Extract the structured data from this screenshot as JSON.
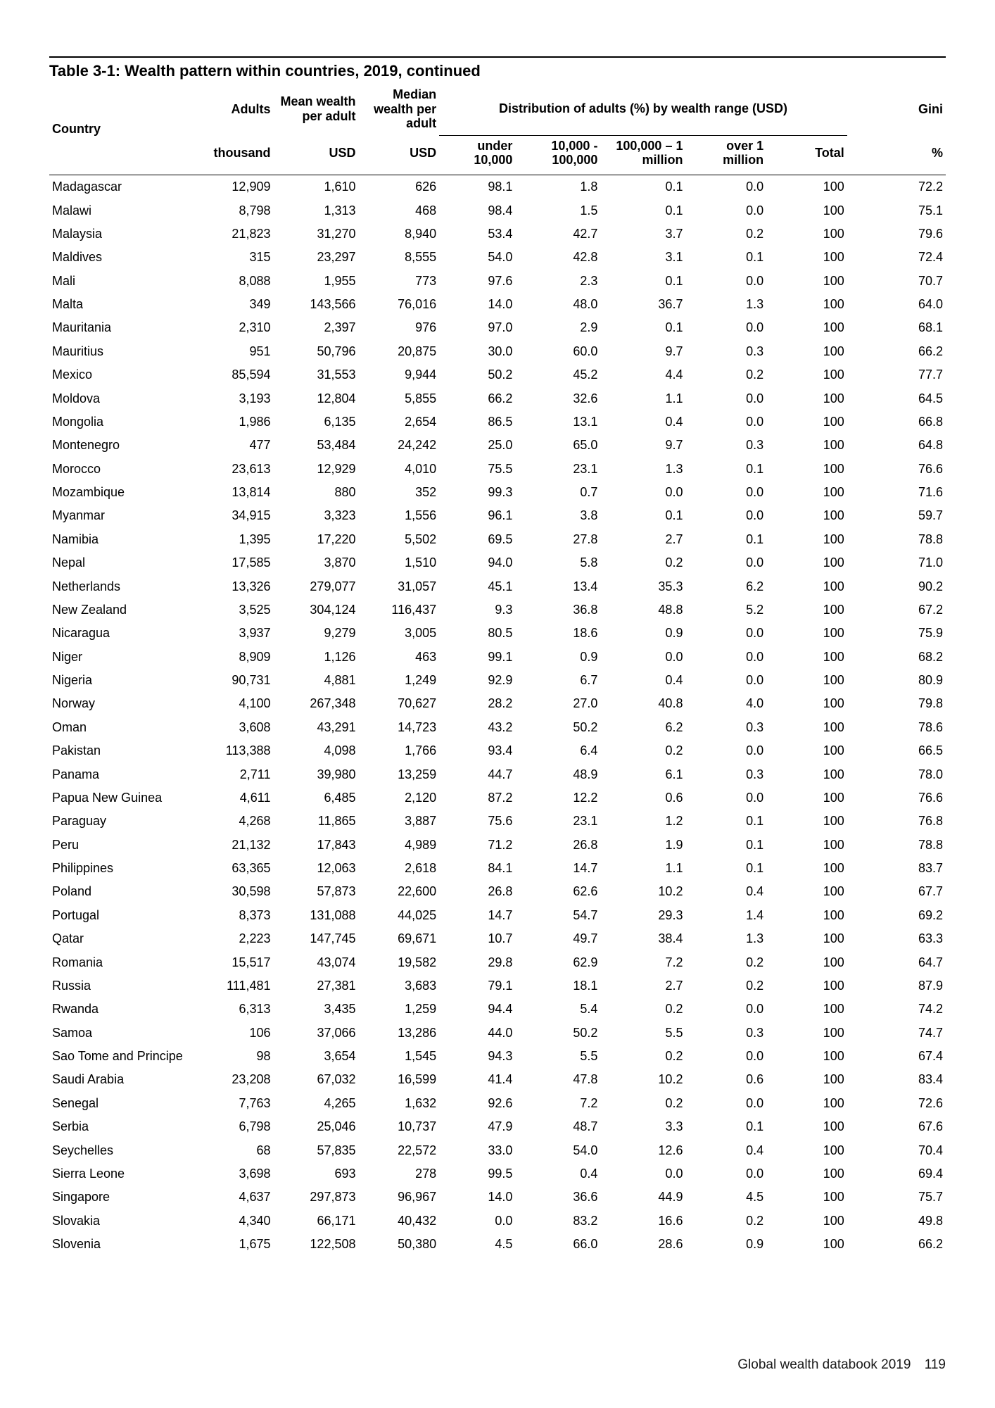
{
  "title": "Table 3-1: Wealth pattern within countries, 2019, continued",
  "head": {
    "country": "Country",
    "adults": "Adults",
    "mean": "Mean wealth per adult",
    "median": "Median wealth per adult",
    "dist": "Distribution of adults (%) by wealth range (USD)",
    "gini": "Gini",
    "sub_thousand": "thousand",
    "sub_usd": "USD",
    "sub_under": "under 10,000",
    "sub_b2": "10,000 - 100,000",
    "sub_b3": "100,000 – 1 million",
    "sub_b4": "over 1 million",
    "sub_total": "Total",
    "sub_pct": "%"
  },
  "rows": [
    {
      "country": "Madagascar",
      "adults": "12,909",
      "mean": "1,610",
      "median": "626",
      "b1": "98.1",
      "b2": "1.8",
      "b3": "0.1",
      "b4": "0.0",
      "total": "100",
      "gini": "72.2"
    },
    {
      "country": "Malawi",
      "adults": "8,798",
      "mean": "1,313",
      "median": "468",
      "b1": "98.4",
      "b2": "1.5",
      "b3": "0.1",
      "b4": "0.0",
      "total": "100",
      "gini": "75.1"
    },
    {
      "country": "Malaysia",
      "adults": "21,823",
      "mean": "31,270",
      "median": "8,940",
      "b1": "53.4",
      "b2": "42.7",
      "b3": "3.7",
      "b4": "0.2",
      "total": "100",
      "gini": "79.6"
    },
    {
      "country": "Maldives",
      "adults": "315",
      "mean": "23,297",
      "median": "8,555",
      "b1": "54.0",
      "b2": "42.8",
      "b3": "3.1",
      "b4": "0.1",
      "total": "100",
      "gini": "72.4"
    },
    {
      "country": "Mali",
      "adults": "8,088",
      "mean": "1,955",
      "median": "773",
      "b1": "97.6",
      "b2": "2.3",
      "b3": "0.1",
      "b4": "0.0",
      "total": "100",
      "gini": "70.7"
    },
    {
      "country": "Malta",
      "adults": "349",
      "mean": "143,566",
      "median": "76,016",
      "b1": "14.0",
      "b2": "48.0",
      "b3": "36.7",
      "b4": "1.3",
      "total": "100",
      "gini": "64.0"
    },
    {
      "country": "Mauritania",
      "adults": "2,310",
      "mean": "2,397",
      "median": "976",
      "b1": "97.0",
      "b2": "2.9",
      "b3": "0.1",
      "b4": "0.0",
      "total": "100",
      "gini": "68.1"
    },
    {
      "country": "Mauritius",
      "adults": "951",
      "mean": "50,796",
      "median": "20,875",
      "b1": "30.0",
      "b2": "60.0",
      "b3": "9.7",
      "b4": "0.3",
      "total": "100",
      "gini": "66.2"
    },
    {
      "country": "Mexico",
      "adults": "85,594",
      "mean": "31,553",
      "median": "9,944",
      "b1": "50.2",
      "b2": "45.2",
      "b3": "4.4",
      "b4": "0.2",
      "total": "100",
      "gini": "77.7"
    },
    {
      "country": "Moldova",
      "adults": "3,193",
      "mean": "12,804",
      "median": "5,855",
      "b1": "66.2",
      "b2": "32.6",
      "b3": "1.1",
      "b4": "0.0",
      "total": "100",
      "gini": "64.5"
    },
    {
      "country": "Mongolia",
      "adults": "1,986",
      "mean": "6,135",
      "median": "2,654",
      "b1": "86.5",
      "b2": "13.1",
      "b3": "0.4",
      "b4": "0.0",
      "total": "100",
      "gini": "66.8"
    },
    {
      "country": "Montenegro",
      "adults": "477",
      "mean": "53,484",
      "median": "24,242",
      "b1": "25.0",
      "b2": "65.0",
      "b3": "9.7",
      "b4": "0.3",
      "total": "100",
      "gini": "64.8"
    },
    {
      "country": "Morocco",
      "adults": "23,613",
      "mean": "12,929",
      "median": "4,010",
      "b1": "75.5",
      "b2": "23.1",
      "b3": "1.3",
      "b4": "0.1",
      "total": "100",
      "gini": "76.6"
    },
    {
      "country": "Mozambique",
      "adults": "13,814",
      "mean": "880",
      "median": "352",
      "b1": "99.3",
      "b2": "0.7",
      "b3": "0.0",
      "b4": "0.0",
      "total": "100",
      "gini": "71.6"
    },
    {
      "country": "Myanmar",
      "adults": "34,915",
      "mean": "3,323",
      "median": "1,556",
      "b1": "96.1",
      "b2": "3.8",
      "b3": "0.1",
      "b4": "0.0",
      "total": "100",
      "gini": "59.7"
    },
    {
      "country": "Namibia",
      "adults": "1,395",
      "mean": "17,220",
      "median": "5,502",
      "b1": "69.5",
      "b2": "27.8",
      "b3": "2.7",
      "b4": "0.1",
      "total": "100",
      "gini": "78.8"
    },
    {
      "country": "Nepal",
      "adults": "17,585",
      "mean": "3,870",
      "median": "1,510",
      "b1": "94.0",
      "b2": "5.8",
      "b3": "0.2",
      "b4": "0.0",
      "total": "100",
      "gini": "71.0"
    },
    {
      "country": "Netherlands",
      "adults": "13,326",
      "mean": "279,077",
      "median": "31,057",
      "b1": "45.1",
      "b2": "13.4",
      "b3": "35.3",
      "b4": "6.2",
      "total": "100",
      "gini": "90.2"
    },
    {
      "country": "New Zealand",
      "adults": "3,525",
      "mean": "304,124",
      "median": "116,437",
      "b1": "9.3",
      "b2": "36.8",
      "b3": "48.8",
      "b4": "5.2",
      "total": "100",
      "gini": "67.2"
    },
    {
      "country": "Nicaragua",
      "adults": "3,937",
      "mean": "9,279",
      "median": "3,005",
      "b1": "80.5",
      "b2": "18.6",
      "b3": "0.9",
      "b4": "0.0",
      "total": "100",
      "gini": "75.9"
    },
    {
      "country": "Niger",
      "adults": "8,909",
      "mean": "1,126",
      "median": "463",
      "b1": "99.1",
      "b2": "0.9",
      "b3": "0.0",
      "b4": "0.0",
      "total": "100",
      "gini": "68.2"
    },
    {
      "country": "Nigeria",
      "adults": "90,731",
      "mean": "4,881",
      "median": "1,249",
      "b1": "92.9",
      "b2": "6.7",
      "b3": "0.4",
      "b4": "0.0",
      "total": "100",
      "gini": "80.9"
    },
    {
      "country": "Norway",
      "adults": "4,100",
      "mean": "267,348",
      "median": "70,627",
      "b1": "28.2",
      "b2": "27.0",
      "b3": "40.8",
      "b4": "4.0",
      "total": "100",
      "gini": "79.8"
    },
    {
      "country": "Oman",
      "adults": "3,608",
      "mean": "43,291",
      "median": "14,723",
      "b1": "43.2",
      "b2": "50.2",
      "b3": "6.2",
      "b4": "0.3",
      "total": "100",
      "gini": "78.6"
    },
    {
      "country": "Pakistan",
      "adults": "113,388",
      "mean": "4,098",
      "median": "1,766",
      "b1": "93.4",
      "b2": "6.4",
      "b3": "0.2",
      "b4": "0.0",
      "total": "100",
      "gini": "66.5"
    },
    {
      "country": "Panama",
      "adults": "2,711",
      "mean": "39,980",
      "median": "13,259",
      "b1": "44.7",
      "b2": "48.9",
      "b3": "6.1",
      "b4": "0.3",
      "total": "100",
      "gini": "78.0"
    },
    {
      "country": "Papua New Guinea",
      "adults": "4,611",
      "mean": "6,485",
      "median": "2,120",
      "b1": "87.2",
      "b2": "12.2",
      "b3": "0.6",
      "b4": "0.0",
      "total": "100",
      "gini": "76.6"
    },
    {
      "country": "Paraguay",
      "adults": "4,268",
      "mean": "11,865",
      "median": "3,887",
      "b1": "75.6",
      "b2": "23.1",
      "b3": "1.2",
      "b4": "0.1",
      "total": "100",
      "gini": "76.8"
    },
    {
      "country": "Peru",
      "adults": "21,132",
      "mean": "17,843",
      "median": "4,989",
      "b1": "71.2",
      "b2": "26.8",
      "b3": "1.9",
      "b4": "0.1",
      "total": "100",
      "gini": "78.8"
    },
    {
      "country": "Philippines",
      "adults": "63,365",
      "mean": "12,063",
      "median": "2,618",
      "b1": "84.1",
      "b2": "14.7",
      "b3": "1.1",
      "b4": "0.1",
      "total": "100",
      "gini": "83.7"
    },
    {
      "country": "Poland",
      "adults": "30,598",
      "mean": "57,873",
      "median": "22,600",
      "b1": "26.8",
      "b2": "62.6",
      "b3": "10.2",
      "b4": "0.4",
      "total": "100",
      "gini": "67.7"
    },
    {
      "country": "Portugal",
      "adults": "8,373",
      "mean": "131,088",
      "median": "44,025",
      "b1": "14.7",
      "b2": "54.7",
      "b3": "29.3",
      "b4": "1.4",
      "total": "100",
      "gini": "69.2"
    },
    {
      "country": "Qatar",
      "adults": "2,223",
      "mean": "147,745",
      "median": "69,671",
      "b1": "10.7",
      "b2": "49.7",
      "b3": "38.4",
      "b4": "1.3",
      "total": "100",
      "gini": "63.3"
    },
    {
      "country": "Romania",
      "adults": "15,517",
      "mean": "43,074",
      "median": "19,582",
      "b1": "29.8",
      "b2": "62.9",
      "b3": "7.2",
      "b4": "0.2",
      "total": "100",
      "gini": "64.7"
    },
    {
      "country": "Russia",
      "adults": "111,481",
      "mean": "27,381",
      "median": "3,683",
      "b1": "79.1",
      "b2": "18.1",
      "b3": "2.7",
      "b4": "0.2",
      "total": "100",
      "gini": "87.9"
    },
    {
      "country": "Rwanda",
      "adults": "6,313",
      "mean": "3,435",
      "median": "1,259",
      "b1": "94.4",
      "b2": "5.4",
      "b3": "0.2",
      "b4": "0.0",
      "total": "100",
      "gini": "74.2"
    },
    {
      "country": "Samoa",
      "adults": "106",
      "mean": "37,066",
      "median": "13,286",
      "b1": "44.0",
      "b2": "50.2",
      "b3": "5.5",
      "b4": "0.3",
      "total": "100",
      "gini": "74.7"
    },
    {
      "country": "Sao Tome and Principe",
      "adults": "98",
      "mean": "3,654",
      "median": "1,545",
      "b1": "94.3",
      "b2": "5.5",
      "b3": "0.2",
      "b4": "0.0",
      "total": "100",
      "gini": "67.4"
    },
    {
      "country": "Saudi Arabia",
      "adults": "23,208",
      "mean": "67,032",
      "median": "16,599",
      "b1": "41.4",
      "b2": "47.8",
      "b3": "10.2",
      "b4": "0.6",
      "total": "100",
      "gini": "83.4"
    },
    {
      "country": "Senegal",
      "adults": "7,763",
      "mean": "4,265",
      "median": "1,632",
      "b1": "92.6",
      "b2": "7.2",
      "b3": "0.2",
      "b4": "0.0",
      "total": "100",
      "gini": "72.6"
    },
    {
      "country": "Serbia",
      "adults": "6,798",
      "mean": "25,046",
      "median": "10,737",
      "b1": "47.9",
      "b2": "48.7",
      "b3": "3.3",
      "b4": "0.1",
      "total": "100",
      "gini": "67.6"
    },
    {
      "country": "Seychelles",
      "adults": "68",
      "mean": "57,835",
      "median": "22,572",
      "b1": "33.0",
      "b2": "54.0",
      "b3": "12.6",
      "b4": "0.4",
      "total": "100",
      "gini": "70.4"
    },
    {
      "country": "Sierra Leone",
      "adults": "3,698",
      "mean": "693",
      "median": "278",
      "b1": "99.5",
      "b2": "0.4",
      "b3": "0.0",
      "b4": "0.0",
      "total": "100",
      "gini": "69.4"
    },
    {
      "country": "Singapore",
      "adults": "4,637",
      "mean": "297,873",
      "median": "96,967",
      "b1": "14.0",
      "b2": "36.6",
      "b3": "44.9",
      "b4": "4.5",
      "total": "100",
      "gini": "75.7"
    },
    {
      "country": "Slovakia",
      "adults": "4,340",
      "mean": "66,171",
      "median": "40,432",
      "b1": "0.0",
      "b2": "83.2",
      "b3": "16.6",
      "b4": "0.2",
      "total": "100",
      "gini": "49.8"
    },
    {
      "country": "Slovenia",
      "adults": "1,675",
      "mean": "122,508",
      "median": "50,380",
      "b1": "4.5",
      "b2": "66.0",
      "b3": "28.6",
      "b4": "0.9",
      "total": "100",
      "gini": "66.2"
    }
  ],
  "footer": {
    "pub": "Global wealth databook 2019",
    "page": "119"
  }
}
